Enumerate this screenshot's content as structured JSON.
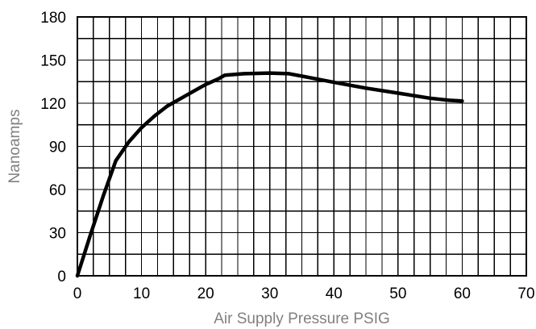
{
  "chart_data": {
    "type": "line",
    "title": "",
    "xlabel": "Air Supply Pressure PSIG",
    "ylabel": "Nanoamps",
    "xlim": [
      0,
      70
    ],
    "ylim": [
      0,
      180
    ],
    "x_ticks": [
      0,
      10,
      20,
      30,
      40,
      50,
      60,
      70
    ],
    "y_ticks": [
      0,
      30,
      60,
      90,
      120,
      150,
      180
    ],
    "x_tick_labels": [
      "0",
      "10",
      "20",
      "30",
      "40",
      "50",
      "60",
      "70"
    ],
    "y_tick_labels": [
      "0",
      "30",
      "60",
      "90",
      "120",
      "150",
      "180"
    ],
    "grid": true,
    "x_minor_step": 2.5,
    "y_minor_step": 15,
    "series": [
      {
        "x": [
          0,
          2,
          4,
          6,
          8,
          10,
          12,
          14,
          16,
          18,
          20,
          22,
          23,
          26,
          30,
          33,
          36,
          40,
          45,
          50,
          55,
          58,
          60
        ],
        "y": [
          0,
          28,
          55,
          80,
          93,
          103,
          111,
          118,
          123,
          128,
          133,
          137,
          139.5,
          140.5,
          141,
          140.5,
          138,
          134.5,
          130.5,
          127,
          123.5,
          122,
          121.5
        ],
        "color": "#000000"
      }
    ]
  }
}
